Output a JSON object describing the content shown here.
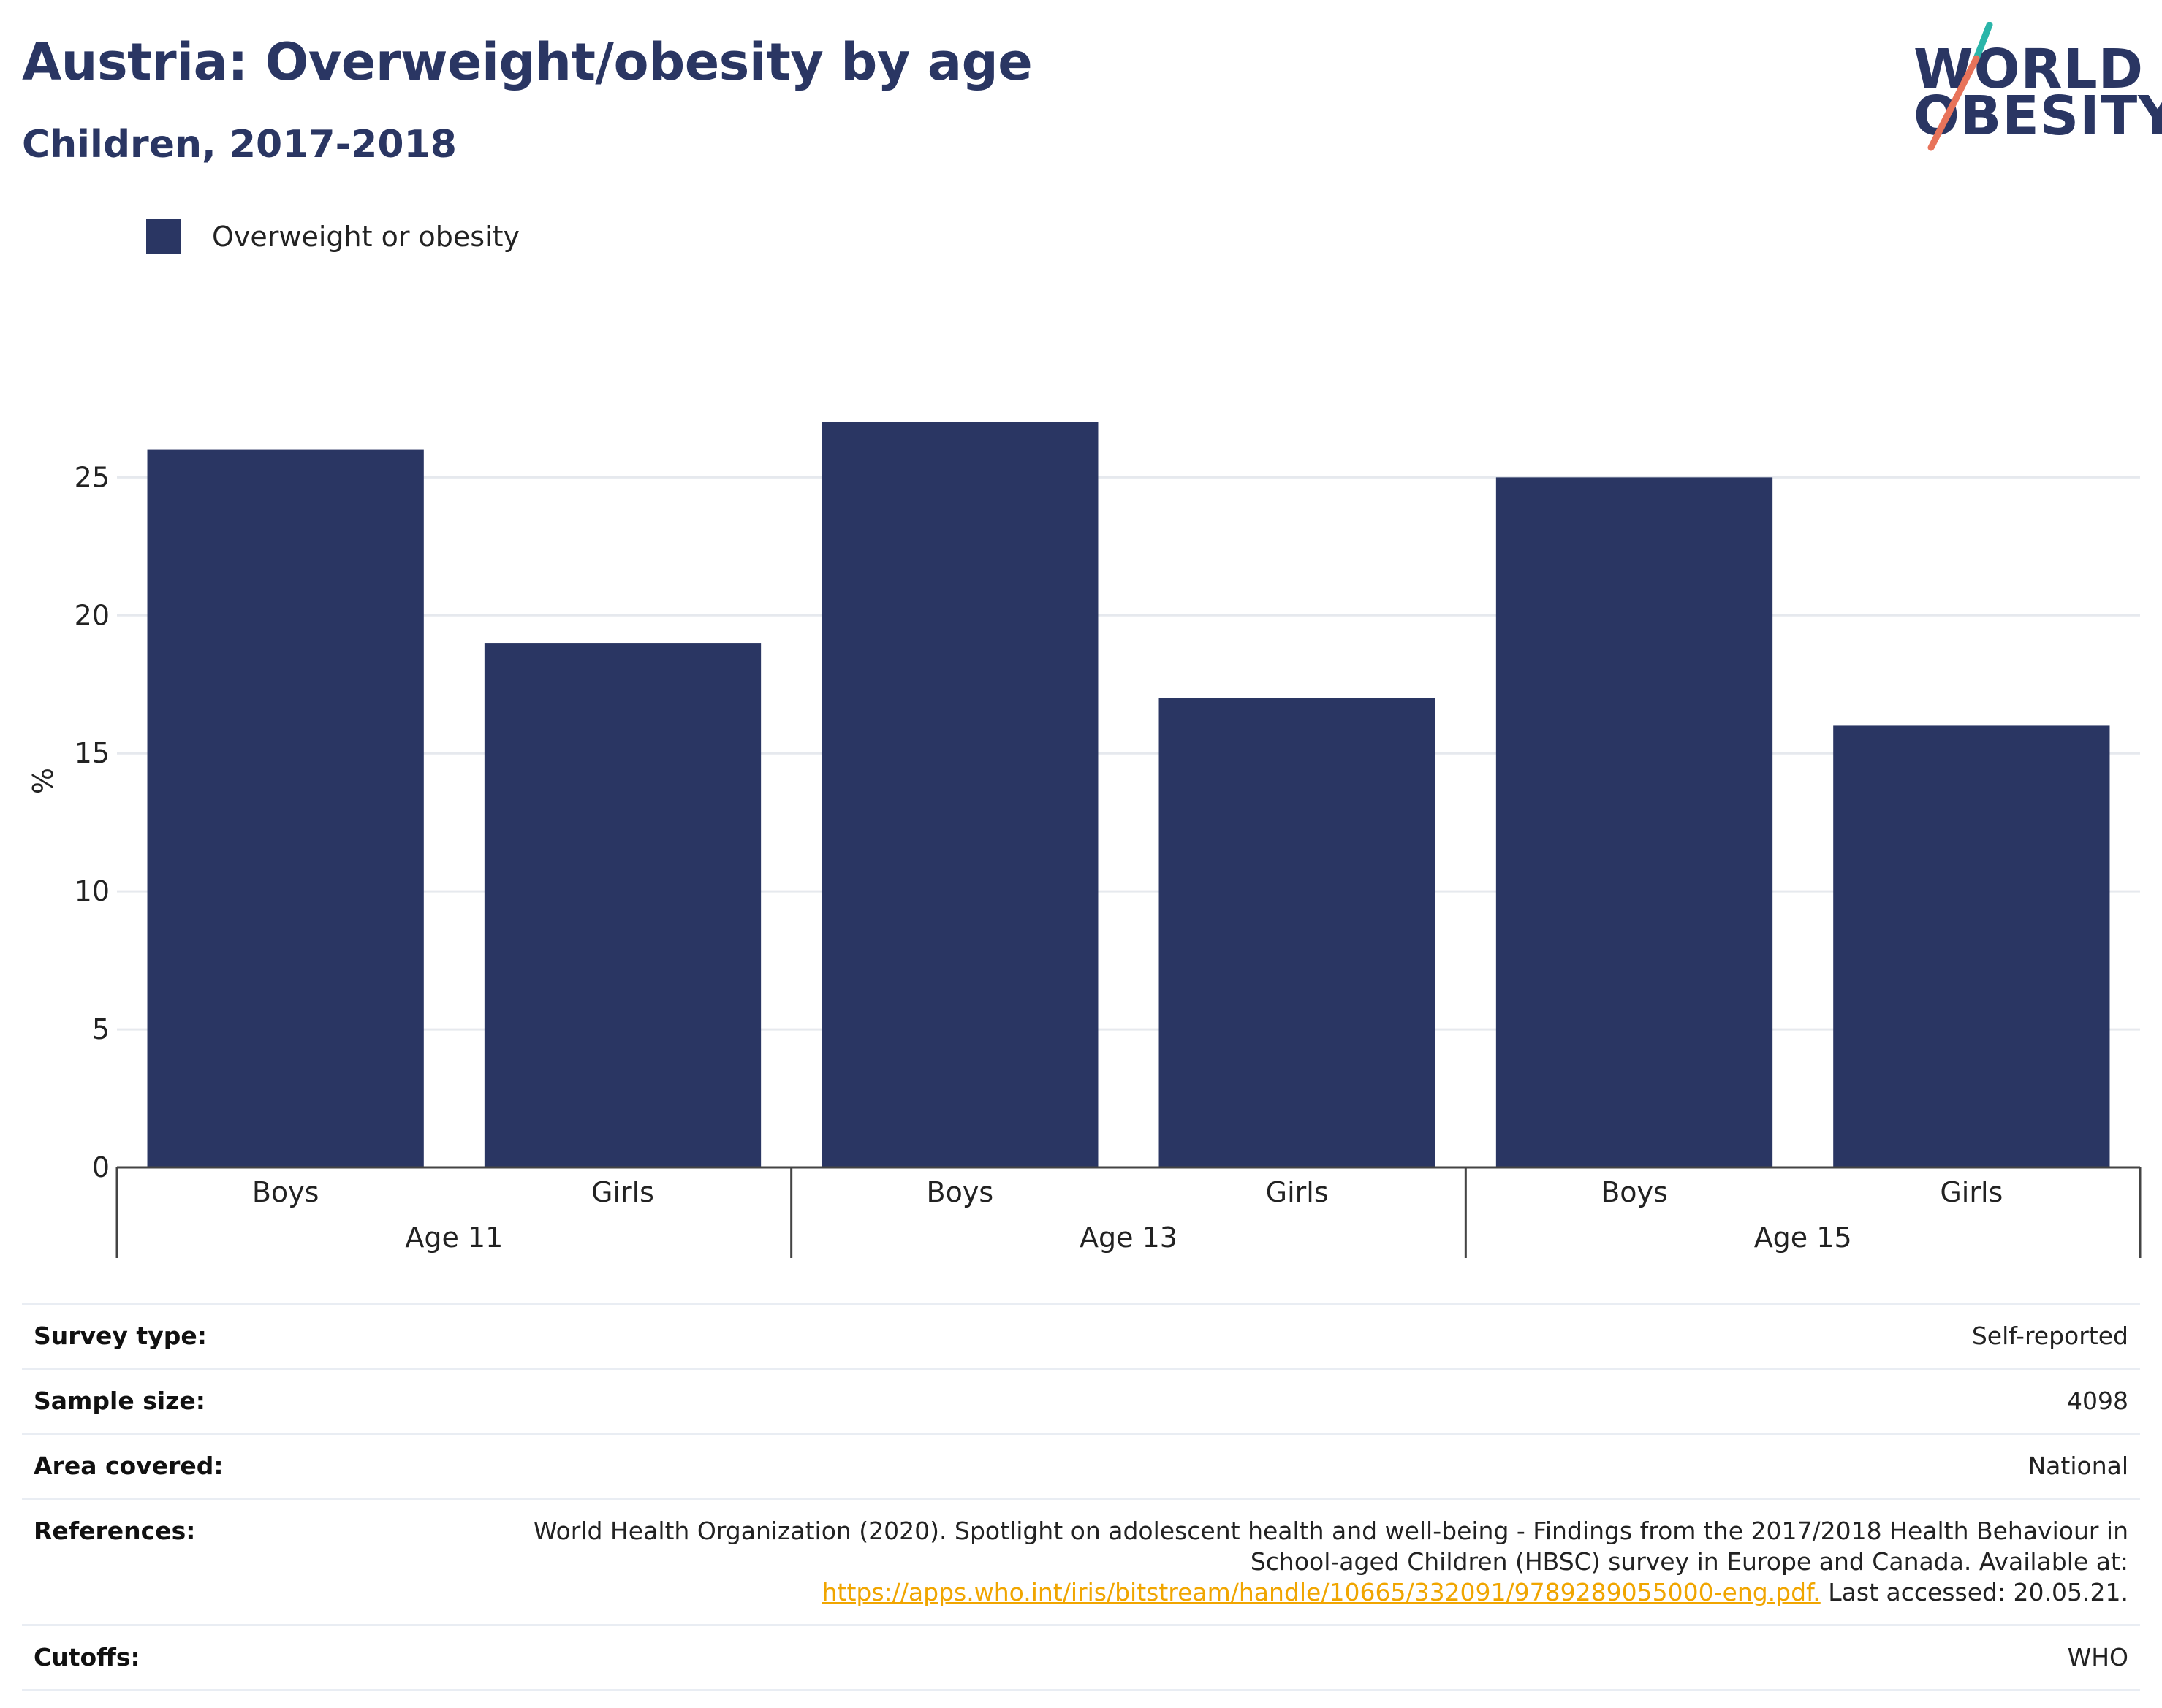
{
  "header": {
    "title": "Austria: Overweight/obesity by age",
    "subtitle": "Children, 2017-2018"
  },
  "logo": {
    "line1": "WORLD",
    "line2": "OBESITY",
    "colors": {
      "navy": "#2a3663",
      "teal": "#2bb5a9",
      "coral": "#e8735a"
    }
  },
  "chart_data": {
    "type": "bar",
    "groups": [
      {
        "label": "Age 11",
        "categories": [
          "Boys",
          "Girls"
        ]
      },
      {
        "label": "Age 13",
        "categories": [
          "Boys",
          "Girls"
        ]
      },
      {
        "label": "Age 15",
        "categories": [
          "Boys",
          "Girls"
        ]
      }
    ],
    "series": [
      {
        "name": "Overweight or obesity",
        "values": [
          26,
          19,
          27,
          17,
          25,
          16
        ],
        "color": "#2a3663"
      }
    ],
    "title": "Austria: Overweight/obesity by age",
    "subtitle": "Children, 2017-2018",
    "xlabel": "",
    "ylabel": "%",
    "ylim": [
      0,
      28
    ],
    "yticks": [
      0,
      5,
      10,
      15,
      20,
      25
    ],
    "grid": true,
    "legend": "top-left"
  },
  "info": {
    "rows": [
      {
        "key": "Survey type:",
        "value": "Self-reported"
      },
      {
        "key": "Sample size:",
        "value": "4098"
      },
      {
        "key": "Area covered:",
        "value": "National"
      }
    ],
    "references": {
      "key": "References:",
      "line1": "World Health Organization (2020). Spotlight on adolescent health and well-being - Findings from the 2017/2018 Health Behaviour in",
      "line2": "School-aged Children (HBSC) survey in Europe and Canada. Available at:",
      "link": "https://apps.who.int/iris/bitstream/handle/10665/332091/9789289055000-eng.pdf.",
      "suffix": " Last accessed: 20.05.21.",
      "link_color": "#f0a500"
    },
    "cutoffs": {
      "key": "Cutoffs:",
      "value": "WHO"
    }
  }
}
